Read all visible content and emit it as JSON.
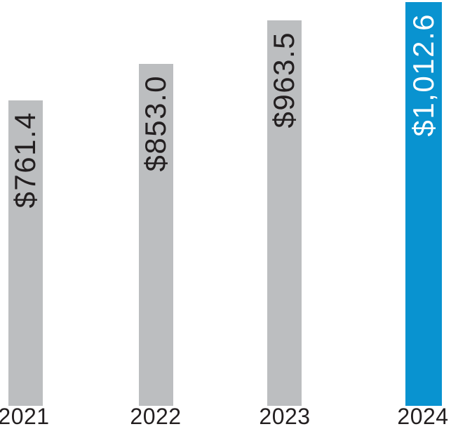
{
  "chart_data": {
    "type": "bar",
    "title": "",
    "xlabel": "",
    "ylabel": "",
    "categories": [
      "2021",
      "2022",
      "2023",
      "2024"
    ],
    "values": [
      761.4,
      853.0,
      963.5,
      1012.6
    ],
    "value_labels": [
      "$761.4",
      "$853.0",
      "$963.5",
      "$1,012.6"
    ],
    "ylim": [
      0,
      1012.6
    ],
    "grid": false,
    "legend": false,
    "axis_lines": false,
    "orientation": "vertical",
    "value_label_position": "inside-top",
    "value_label_rotation_deg": 90,
    "highlight_index": 3,
    "colors": {
      "bar_default": "#BCBEC0",
      "bar_highlight": "#0993D0",
      "value_label_on_default": "#231F20",
      "value_label_on_highlight": "#FFFFFF",
      "category_label": "#231F20",
      "background": "#FFFFFF"
    }
  }
}
